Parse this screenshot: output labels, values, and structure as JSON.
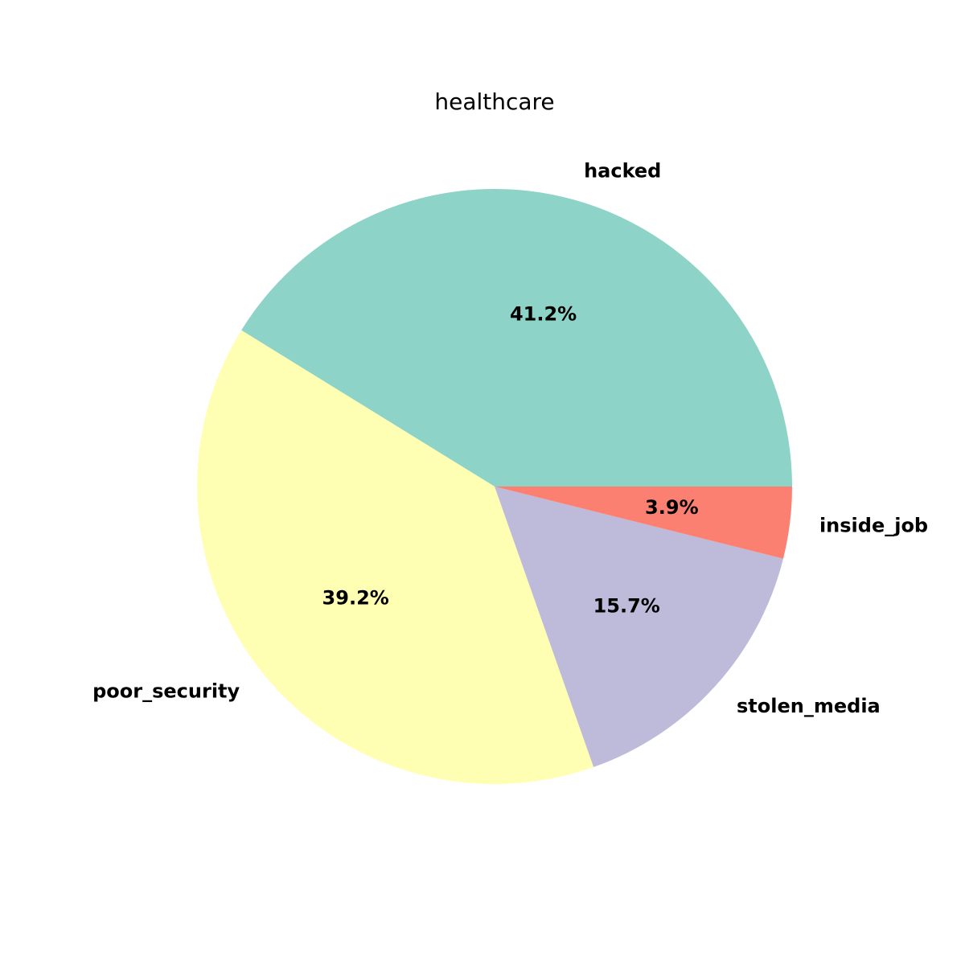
{
  "chart_data": {
    "type": "pie",
    "title": "healthcare",
    "start_angle_deg": 0,
    "direction": "counterclockwise",
    "slices": [
      {
        "label": "hacked",
        "value": 41.2,
        "pct_label": "41.2%",
        "color": "#8dd3c7"
      },
      {
        "label": "poor_security",
        "value": 39.2,
        "pct_label": "39.2%",
        "color": "#ffffb3"
      },
      {
        "label": "stolen_media",
        "value": 15.7,
        "pct_label": "15.7%",
        "color": "#bebada"
      },
      {
        "label": "inside_job",
        "value": 3.9,
        "pct_label": "3.9%",
        "color": "#fb8072"
      }
    ]
  }
}
